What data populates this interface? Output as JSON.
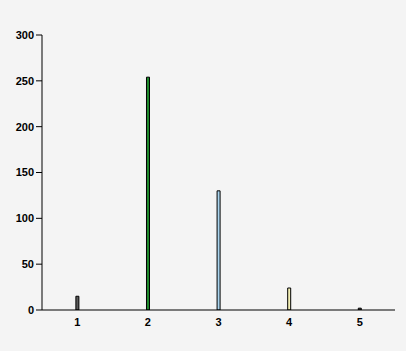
{
  "chart_data": {
    "type": "bar",
    "categories": [
      "1",
      "2",
      "3",
      "4",
      "5"
    ],
    "values": [
      15,
      254,
      130,
      24,
      2
    ],
    "colors": [
      "#5a5a5a",
      "#1f8a2c",
      "#a9d4ee",
      "#f3efb4",
      "#4a4a4a"
    ],
    "ylim": [
      0,
      300
    ],
    "yticks": [
      0,
      50,
      100,
      150,
      200,
      250,
      300
    ],
    "grid": false
  }
}
